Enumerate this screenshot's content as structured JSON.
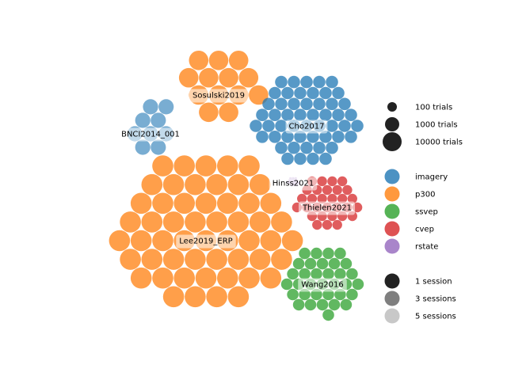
{
  "chart_data": {
    "type": "scatter",
    "title": "",
    "colors": {
      "imagery": "#1f77b4",
      "p300": "#ff7f0e",
      "ssvep": "#2ca02c",
      "cvep": "#d62728",
      "rstate": "#9467bd"
    },
    "datasets": [
      {
        "name": "Lee2019_ERP",
        "paradigm": "p300",
        "sessions": 1,
        "trials_per_subject": 6900,
        "subjects": 54
      },
      {
        "name": "Sosulski2019",
        "paradigm": "p300",
        "sessions": 1,
        "trials_per_subject": 7000,
        "subjects": 13
      },
      {
        "name": "BNCI2014_001",
        "paradigm": "imagery",
        "sessions": 3,
        "trials_per_subject": 400,
        "subjects": 9
      },
      {
        "name": "Cho2017",
        "paradigm": "imagery",
        "sessions": 1,
        "trials_per_subject": 250,
        "subjects": 52
      },
      {
        "name": "Hinss2021",
        "paradigm": "rstate",
        "sessions": 5,
        "trials_per_subject": 10,
        "subjects": 15
      },
      {
        "name": "Thielen2021",
        "paradigm": "cvep",
        "sessions": 1,
        "trials_per_subject": 400,
        "subjects": 30
      },
      {
        "name": "Wang2016",
        "paradigm": "ssvep",
        "sessions": 1,
        "trials_per_subject": 240,
        "subjects": 34
      }
    ],
    "legend": {
      "placement": "right",
      "size_entries": [
        {
          "label": "100 trials",
          "trials": 100
        },
        {
          "label": "1000 trials",
          "trials": 1000
        },
        {
          "label": "10000 trials",
          "trials": 10000
        }
      ],
      "paradigm_entries": [
        {
          "label": "imagery",
          "paradigm": "imagery"
        },
        {
          "label": "p300",
          "paradigm": "p300"
        },
        {
          "label": "ssvep",
          "paradigm": "ssvep"
        },
        {
          "label": "cvep",
          "paradigm": "cvep"
        },
        {
          "label": "rstate",
          "paradigm": "rstate"
        }
      ],
      "session_entries": [
        {
          "label": "1 session",
          "sessions": 1
        },
        {
          "label": "3 sessions",
          "sessions": 3
        },
        {
          "label": "5 sessions",
          "sessions": 5
        }
      ]
    }
  }
}
